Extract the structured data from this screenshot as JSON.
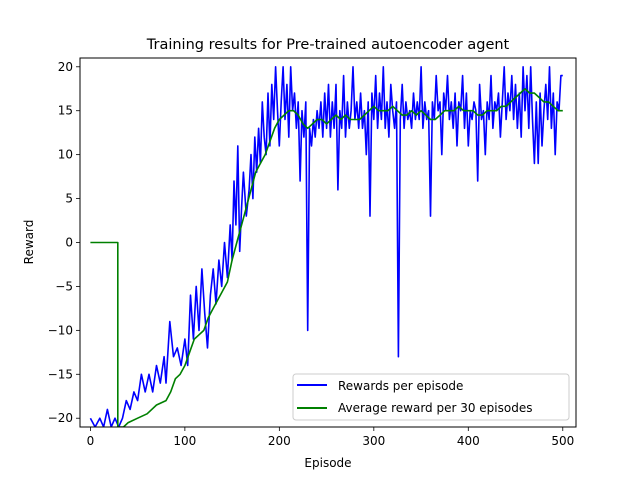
{
  "chart_data": {
    "type": "line",
    "title": "Training results for Pre-trained autoencoder agent",
    "xlabel": "Episode",
    "ylabel": "Reward",
    "xlim": [
      -11,
      514
    ],
    "ylim": [
      -21,
      21
    ],
    "x_ticks": [
      0,
      100,
      200,
      300,
      400,
      500
    ],
    "y_ticks": [
      -20,
      -15,
      -10,
      -5,
      0,
      5,
      10,
      15,
      20
    ],
    "x_tick_labels": [
      "0",
      "100",
      "200",
      "300",
      "400",
      "500"
    ],
    "y_tick_labels": [
      "−20",
      "−15",
      "−10",
      "−5",
      "0",
      "5",
      "10",
      "15",
      "20"
    ],
    "grid": false,
    "legend": "lower-right",
    "series": [
      {
        "name": "Rewards per episode",
        "color": "#0000ff",
        "points": [
          [
            0,
            -20
          ],
          [
            5,
            -21
          ],
          [
            10,
            -20
          ],
          [
            14,
            -21
          ],
          [
            18,
            -19
          ],
          [
            22,
            -21
          ],
          [
            26,
            -20
          ],
          [
            30,
            -21
          ],
          [
            34,
            -20
          ],
          [
            38,
            -18
          ],
          [
            42,
            -19
          ],
          [
            46,
            -17
          ],
          [
            50,
            -18
          ],
          [
            54,
            -15
          ],
          [
            58,
            -17
          ],
          [
            62,
            -15
          ],
          [
            66,
            -17
          ],
          [
            70,
            -14
          ],
          [
            74,
            -16
          ],
          [
            78,
            -13
          ],
          [
            80,
            -16
          ],
          [
            84,
            -9
          ],
          [
            88,
            -13
          ],
          [
            92,
            -12
          ],
          [
            96,
            -14
          ],
          [
            100,
            -11
          ],
          [
            103,
            -14
          ],
          [
            106,
            -6
          ],
          [
            109,
            -11
          ],
          [
            112,
            -5
          ],
          [
            115,
            -10
          ],
          [
            118,
            -3
          ],
          [
            121,
            -8
          ],
          [
            124,
            -12
          ],
          [
            127,
            -6
          ],
          [
            130,
            -3
          ],
          [
            133,
            -7
          ],
          [
            136,
            -2
          ],
          [
            139,
            -5
          ],
          [
            142,
            0
          ],
          [
            145,
            -4
          ],
          [
            148,
            2
          ],
          [
            150,
            -2
          ],
          [
            152,
            7
          ],
          [
            154,
            2
          ],
          [
            156,
            11
          ],
          [
            158,
            -1
          ],
          [
            160,
            4
          ],
          [
            162,
            8
          ],
          [
            165,
            3
          ],
          [
            168,
            6
          ],
          [
            170,
            10
          ],
          [
            172,
            5
          ],
          [
            174,
            12
          ],
          [
            176,
            8
          ],
          [
            178,
            13
          ],
          [
            180,
            9
          ],
          [
            182,
            16
          ],
          [
            184,
            12
          ],
          [
            186,
            10
          ],
          [
            188,
            17
          ],
          [
            190,
            11
          ],
          [
            192,
            18
          ],
          [
            194,
            14
          ],
          [
            196,
            20
          ],
          [
            198,
            15
          ],
          [
            200,
            11
          ],
          [
            202,
            16
          ],
          [
            204,
            20
          ],
          [
            206,
            14
          ],
          [
            208,
            18
          ],
          [
            210,
            12
          ],
          [
            212,
            20
          ],
          [
            214,
            15
          ],
          [
            216,
            17
          ],
          [
            218,
            13
          ],
          [
            220,
            16
          ],
          [
            222,
            7
          ],
          [
            224,
            15
          ],
          [
            226,
            12
          ],
          [
            228,
            16
          ],
          [
            230,
            -10
          ],
          [
            232,
            13
          ],
          [
            234,
            11
          ],
          [
            236,
            14
          ],
          [
            238,
            12
          ],
          [
            240,
            15
          ],
          [
            242,
            13
          ],
          [
            244,
            16
          ],
          [
            246,
            12
          ],
          [
            248,
            17
          ],
          [
            250,
            13
          ],
          [
            252,
            18
          ],
          [
            254,
            12
          ],
          [
            256,
            16
          ],
          [
            258,
            13
          ],
          [
            260,
            18
          ],
          [
            262,
            6
          ],
          [
            264,
            15
          ],
          [
            266,
            13
          ],
          [
            268,
            19
          ],
          [
            270,
            12
          ],
          [
            272,
            16
          ],
          [
            274,
            13
          ],
          [
            276,
            15
          ],
          [
            278,
            20
          ],
          [
            280,
            14
          ],
          [
            282,
            16
          ],
          [
            284,
            13
          ],
          [
            286,
            17
          ],
          [
            288,
            13
          ],
          [
            290,
            15
          ],
          [
            292,
            10
          ],
          [
            294,
            16
          ],
          [
            296,
            3
          ],
          [
            298,
            17
          ],
          [
            300,
            14
          ],
          [
            302,
            19
          ],
          [
            304,
            13
          ],
          [
            306,
            17
          ],
          [
            308,
            14
          ],
          [
            310,
            20
          ],
          [
            312,
            13
          ],
          [
            314,
            16
          ],
          [
            316,
            12
          ],
          [
            318,
            18
          ],
          [
            320,
            15
          ],
          [
            322,
            13
          ],
          [
            324,
            16
          ],
          [
            326,
            -13
          ],
          [
            328,
            14
          ],
          [
            330,
            18
          ],
          [
            332,
            13
          ],
          [
            334,
            16
          ],
          [
            336,
            14
          ],
          [
            338,
            15
          ],
          [
            340,
            13
          ],
          [
            342,
            17
          ],
          [
            344,
            14
          ],
          [
            346,
            16
          ],
          [
            348,
            14
          ],
          [
            350,
            20
          ],
          [
            352,
            13
          ],
          [
            354,
            16
          ],
          [
            356,
            14
          ],
          [
            358,
            15
          ],
          [
            360,
            3
          ],
          [
            362,
            16
          ],
          [
            364,
            14
          ],
          [
            366,
            19
          ],
          [
            368,
            15
          ],
          [
            370,
            16
          ],
          [
            372,
            10
          ],
          [
            374,
            17
          ],
          [
            376,
            15
          ],
          [
            378,
            19
          ],
          [
            380,
            14
          ],
          [
            382,
            16
          ],
          [
            384,
            13
          ],
          [
            386,
            17
          ],
          [
            388,
            11
          ],
          [
            390,
            16
          ],
          [
            392,
            15
          ],
          [
            394,
            19
          ],
          [
            396,
            13
          ],
          [
            398,
            17
          ],
          [
            400,
            11
          ],
          [
            402,
            15
          ],
          [
            404,
            14
          ],
          [
            406,
            16
          ],
          [
            408,
            15
          ],
          [
            410,
            7
          ],
          [
            412,
            18
          ],
          [
            414,
            14
          ],
          [
            416,
            15
          ],
          [
            418,
            10
          ],
          [
            420,
            16
          ],
          [
            422,
            14
          ],
          [
            424,
            19
          ],
          [
            426,
            13
          ],
          [
            428,
            16
          ],
          [
            430,
            15
          ],
          [
            432,
            17
          ],
          [
            434,
            12
          ],
          [
            436,
            16
          ],
          [
            438,
            20
          ],
          [
            440,
            14
          ],
          [
            442,
            17
          ],
          [
            444,
            15
          ],
          [
            446,
            19
          ],
          [
            448,
            14
          ],
          [
            450,
            18
          ],
          [
            452,
            13
          ],
          [
            454,
            17
          ],
          [
            456,
            12
          ],
          [
            458,
            20
          ],
          [
            460,
            15
          ],
          [
            462,
            19
          ],
          [
            464,
            13
          ],
          [
            466,
            20
          ],
          [
            468,
            14
          ],
          [
            470,
            9
          ],
          [
            472,
            16
          ],
          [
            474,
            9
          ],
          [
            476,
            17
          ],
          [
            478,
            11
          ],
          [
            480,
            15
          ],
          [
            482,
            18
          ],
          [
            484,
            14
          ],
          [
            486,
            20
          ],
          [
            488,
            13
          ],
          [
            490,
            17
          ],
          [
            492,
            10
          ],
          [
            494,
            16
          ],
          [
            496,
            15
          ],
          [
            498,
            19
          ],
          [
            500,
            19
          ]
        ]
      },
      {
        "name": "Average reward per 30 episodes",
        "color": "#008000",
        "points": [
          [
            0,
            0
          ],
          [
            29,
            0
          ],
          [
            29,
            -21
          ],
          [
            35,
            -21
          ],
          [
            40,
            -20.5
          ],
          [
            50,
            -20
          ],
          [
            60,
            -19.5
          ],
          [
            70,
            -18.5
          ],
          [
            80,
            -18
          ],
          [
            85,
            -17
          ],
          [
            90,
            -15.5
          ],
          [
            95,
            -15
          ],
          [
            100,
            -14
          ],
          [
            105,
            -12.5
          ],
          [
            110,
            -11
          ],
          [
            115,
            -10.5
          ],
          [
            120,
            -10
          ],
          [
            125,
            -8.5
          ],
          [
            130,
            -7.5
          ],
          [
            135,
            -6.5
          ],
          [
            140,
            -5.5
          ],
          [
            145,
            -4.5
          ],
          [
            150,
            -2
          ],
          [
            155,
            0
          ],
          [
            160,
            2
          ],
          [
            165,
            4
          ],
          [
            170,
            6
          ],
          [
            175,
            8
          ],
          [
            180,
            9
          ],
          [
            185,
            10
          ],
          [
            190,
            11.5
          ],
          [
            195,
            13
          ],
          [
            200,
            14
          ],
          [
            205,
            14.5
          ],
          [
            210,
            15
          ],
          [
            215,
            15
          ],
          [
            220,
            14.5
          ],
          [
            225,
            13.5
          ],
          [
            230,
            13
          ],
          [
            235,
            13.5
          ],
          [
            240,
            14
          ],
          [
            245,
            14
          ],
          [
            250,
            13.5
          ],
          [
            255,
            14
          ],
          [
            260,
            14.5
          ],
          [
            265,
            14
          ],
          [
            270,
            14.5
          ],
          [
            275,
            14
          ],
          [
            280,
            14
          ],
          [
            285,
            14
          ],
          [
            290,
            14.5
          ],
          [
            295,
            15
          ],
          [
            300,
            15.5
          ],
          [
            305,
            15
          ],
          [
            310,
            15
          ],
          [
            315,
            15
          ],
          [
            320,
            15.5
          ],
          [
            325,
            15
          ],
          [
            330,
            14.5
          ],
          [
            335,
            14.5
          ],
          [
            340,
            15
          ],
          [
            345,
            14.5
          ],
          [
            350,
            15
          ],
          [
            355,
            14.5
          ],
          [
            360,
            14
          ],
          [
            365,
            14
          ],
          [
            370,
            14.5
          ],
          [
            375,
            15
          ],
          [
            380,
            15
          ],
          [
            385,
            15
          ],
          [
            390,
            15.5
          ],
          [
            395,
            15
          ],
          [
            400,
            15
          ],
          [
            405,
            15
          ],
          [
            410,
            14.5
          ],
          [
            415,
            14.5
          ],
          [
            420,
            15
          ],
          [
            425,
            15
          ],
          [
            430,
            15
          ],
          [
            435,
            15.5
          ],
          [
            440,
            15.5
          ],
          [
            445,
            16
          ],
          [
            450,
            16.5
          ],
          [
            455,
            17
          ],
          [
            460,
            17.5
          ],
          [
            465,
            17
          ],
          [
            470,
            17
          ],
          [
            475,
            16.5
          ],
          [
            480,
            16
          ],
          [
            485,
            16
          ],
          [
            490,
            15.5
          ],
          [
            495,
            15
          ],
          [
            500,
            15
          ]
        ]
      }
    ]
  }
}
